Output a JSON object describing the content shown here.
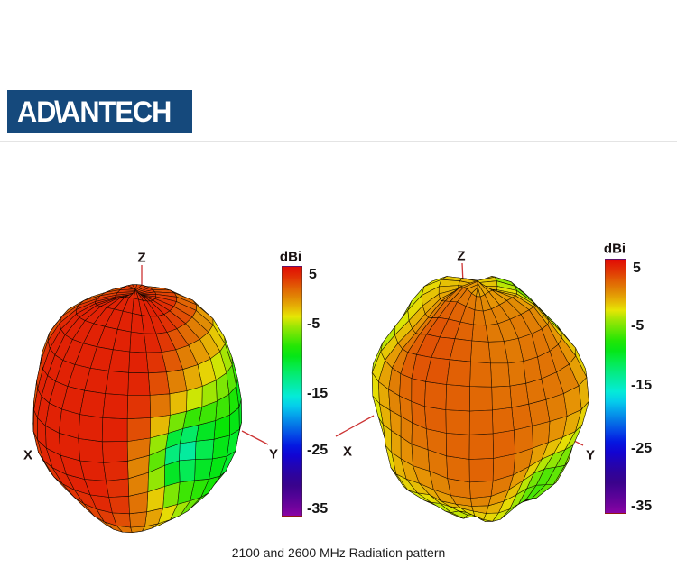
{
  "page": {
    "background": "#ffffff",
    "caption": "2100 and 2600 MHz Radiation pattern"
  },
  "logo": {
    "brand": "ADVANTECH",
    "part1": "AD",
    "vglyph": "\\",
    "part2": "ANTECH",
    "bg_color": "#15497c",
    "text_color": "#ffffff"
  },
  "chart_data": [
    {
      "type": "surface3d",
      "title": "2100 MHz radiation pattern (left figure)",
      "frequency_mhz": 2100,
      "axes": [
        "X",
        "Y",
        "Z"
      ],
      "axis_color": "#cc3333",
      "mesh": "black wireframe lat-long grid on gain surface",
      "colorbar": {
        "label": "dBi",
        "ticks": [
          5,
          -5,
          -15,
          -25,
          -35
        ],
        "top_value": 6,
        "bottom_value": -36,
        "colormap": "rainbow (red=high gain, purple=low gain)",
        "position": "right of figure"
      },
      "gain_reading": {
        "peak_dbi": 5,
        "peak_direction": "upper front-left hemisphere (red region)",
        "right_side_dbi": -8,
        "min_dbi": -16,
        "min_direction": "dimple toward +Y axis (cyan-green region)"
      }
    },
    {
      "type": "surface3d",
      "title": "2600 MHz radiation pattern (right figure)",
      "frequency_mhz": 2600,
      "axes": [
        "X",
        "Y",
        "Z"
      ],
      "axis_color": "#cc3333",
      "mesh": "black wireframe lat-long grid on gain surface",
      "colorbar": {
        "label": "dBi",
        "ticks": [
          5,
          -5,
          -15,
          -25,
          -35
        ],
        "top_value": 6,
        "bottom_value": -36,
        "colormap": "rainbow (red=high gain, purple=low gain)",
        "position": "right of figure"
      },
      "gain_reading": {
        "front_dbi": 3,
        "front_direction": "broad viewer-facing orange lobe (near-omnidirectional)",
        "rim_dbi": -3,
        "patch_min_dbi": -10,
        "patch_directions": "upper-left and lower silhouette lumps (green)"
      }
    }
  ]
}
